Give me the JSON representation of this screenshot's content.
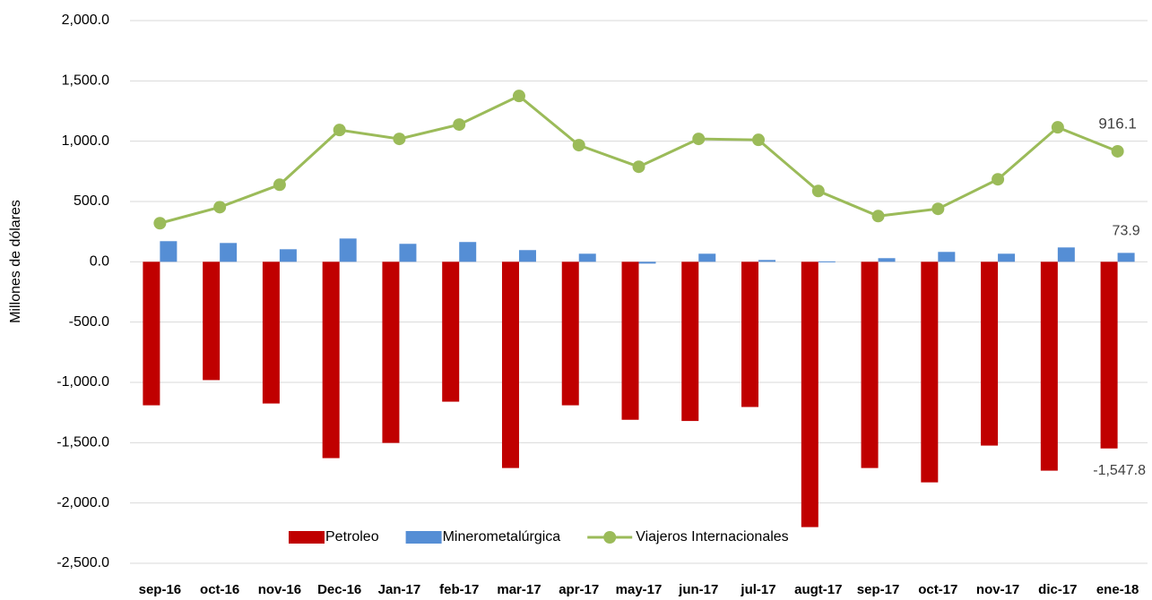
{
  "chart_data": {
    "type": "bar_line",
    "y_axis_label": "Millones de dólares",
    "categories": [
      "sep-16",
      "oct-16",
      "nov-16",
      "Dec-16",
      "Jan-17",
      "feb-17",
      "mar-17",
      "apr-17",
      "may-17",
      "jun-17",
      "jul-17",
      "augt-17",
      "sep-17",
      "oct-17",
      "nov-17",
      "dic-17",
      "ene-18"
    ],
    "series": [
      {
        "name": "Petroleo",
        "type": "bar",
        "color": "#c00000",
        "values": [
          -1190,
          -981,
          -1175,
          -1628,
          -1502,
          -1160,
          -1710,
          -1190,
          -1310,
          -1320,
          -1204,
          -2200,
          -1710,
          -1829,
          -1524,
          -1732,
          -1547.8
        ],
        "value_labels": [
          null,
          null,
          null,
          null,
          null,
          null,
          null,
          null,
          null,
          null,
          null,
          null,
          null,
          null,
          null,
          null,
          "-1,547.8"
        ]
      },
      {
        "name": "Minerometalúrgica",
        "type": "bar",
        "color": "#558ed5",
        "values": [
          171,
          156,
          104,
          193,
          149,
          164,
          97,
          67,
          -15,
          67,
          15,
          3,
          30,
          82,
          67,
          119,
          73.9
        ],
        "value_labels": [
          null,
          null,
          null,
          null,
          null,
          null,
          null,
          null,
          null,
          null,
          null,
          null,
          null,
          null,
          null,
          null,
          "73.9"
        ]
      },
      {
        "name": "Viajeros Internacionales",
        "type": "line",
        "color": "#9bbb59",
        "values": [
          320,
          453,
          639,
          1093,
          1019,
          1138,
          1375,
          967,
          788,
          1019,
          1011,
          587,
          379,
          439,
          684,
          1115,
          916.1
        ],
        "value_labels": [
          null,
          null,
          null,
          null,
          null,
          null,
          null,
          null,
          null,
          null,
          null,
          null,
          null,
          null,
          null,
          null,
          "916.1"
        ]
      }
    ],
    "ylim": [
      -2500,
      2000
    ],
    "yticks": [
      {
        "value": -2500,
        "label": "-2,500.0"
      },
      {
        "value": -2000,
        "label": "-2,000.0"
      },
      {
        "value": -1500,
        "label": "-1,500.0"
      },
      {
        "value": -1000,
        "label": "-1,000.0"
      },
      {
        "value": -500,
        "label": "-500.0"
      },
      {
        "value": 0,
        "label": "0.0"
      },
      {
        "value": 500,
        "label": "500.0"
      },
      {
        "value": 1000,
        "label": "1,000.0"
      },
      {
        "value": 1500,
        "label": "1,500.0"
      },
      {
        "value": 2000,
        "label": "2,000.0"
      }
    ],
    "grid": true
  }
}
